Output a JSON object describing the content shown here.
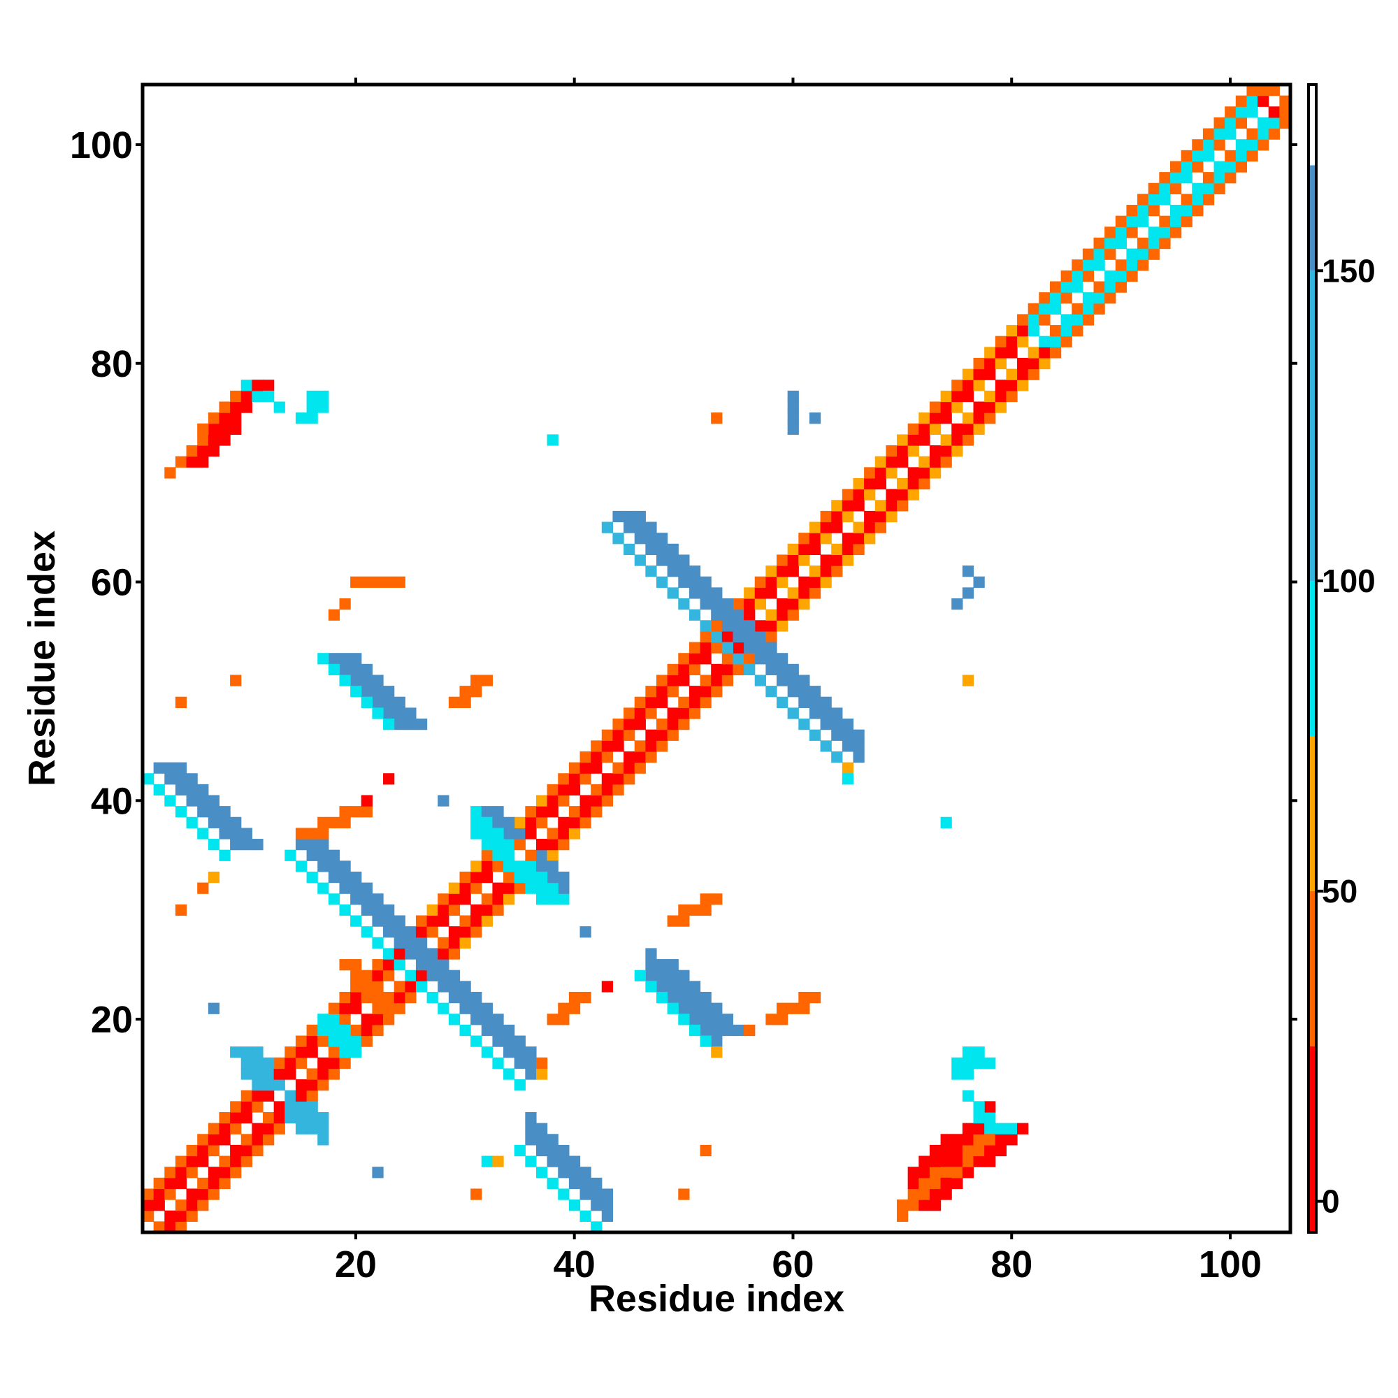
{
  "chart_data": {
    "type": "heatmap",
    "title": "",
    "xlabel": "Residue index",
    "ylabel": "Residue index",
    "xlim": [
      1,
      105
    ],
    "ylim": [
      1,
      105
    ],
    "xticks": [
      20,
      40,
      60,
      80,
      100
    ],
    "yticks": [
      20,
      40,
      60,
      80,
      100
    ],
    "xtick_labels": [
      "20",
      "40",
      "60",
      "80",
      "100"
    ],
    "ytick_labels": [
      "20",
      "40",
      "60",
      "80",
      "100"
    ],
    "grid": false,
    "colorbar": {
      "range": [
        -5,
        180
      ],
      "ticks": [
        0,
        50,
        100,
        150
      ],
      "tick_labels": [
        "0",
        "50",
        "100",
        "150"
      ],
      "bands": [
        {
          "from": -5,
          "to": 25,
          "color": "#ff0000"
        },
        {
          "from": 25,
          "to": 50,
          "color": "#ff6600"
        },
        {
          "from": 50,
          "to": 75,
          "color": "#ffa500"
        },
        {
          "from": 75,
          "to": 100,
          "color": "#00e5ee"
        },
        {
          "from": 100,
          "to": 150,
          "color": "#33b5dd"
        },
        {
          "from": 150,
          "to": 167,
          "color": "#4a8ec6"
        },
        {
          "from": 167,
          "to": 180,
          "color": "#ffffff"
        }
      ]
    },
    "colors": {
      "red": "#ff0000",
      "orange_red": "#ff4500",
      "orange": "#ff6600",
      "amber": "#ffa500",
      "cyan": "#00e5ee",
      "sky": "#33b5dd",
      "steel": "#4a8ec6"
    },
    "diagonal_bands": [
      {
        "from": 1,
        "to": 12,
        "palette": [
          "orange",
          "red",
          "orange"
        ]
      },
      {
        "from": 12,
        "to": 26,
        "palette": [
          "orange",
          "red",
          "orange"
        ]
      },
      {
        "from": 26,
        "to": 38,
        "palette": [
          "orange",
          "red",
          "amber"
        ]
      },
      {
        "from": 38,
        "to": 55,
        "palette": [
          "orange",
          "red",
          "orange"
        ]
      },
      {
        "from": 55,
        "to": 82,
        "palette": [
          "amber",
          "red",
          "orange"
        ]
      },
      {
        "from": 82,
        "to": 103,
        "palette": [
          "orange",
          "cyan",
          "orange"
        ]
      },
      {
        "from": 103,
        "to": 105,
        "palette": [
          "red",
          "orange",
          "red"
        ]
      }
    ],
    "segments": [
      {
        "x1": 4,
        "y1": 71,
        "x2": 10,
        "y2": 78,
        "w": 3,
        "color": "red",
        "sym": true
      },
      {
        "x1": 3,
        "y1": 70,
        "x2": 9,
        "y2": 77,
        "w": 1,
        "color": "orange",
        "sym": true
      },
      {
        "x1": 10,
        "y1": 78,
        "x2": 13,
        "y2": 76,
        "w": 1,
        "color": "cyan",
        "sym": true
      },
      {
        "x1": 15,
        "y1": 75,
        "x2": 16,
        "y2": 77,
        "w": 2,
        "color": "cyan",
        "sym": true
      },
      {
        "x1": 44,
        "y1": 66,
        "x2": 55,
        "y2": 55,
        "w": 3,
        "color": "steel",
        "sym": true
      },
      {
        "x1": 43,
        "y1": 65,
        "x2": 54,
        "y2": 54,
        "w": 1,
        "color": "sky",
        "sym": true
      },
      {
        "x1": 18,
        "y1": 53,
        "x2": 24,
        "y2": 47,
        "w": 3,
        "color": "steel",
        "sym": true
      },
      {
        "x1": 17,
        "y1": 53,
        "x2": 23,
        "y2": 47,
        "w": 1,
        "color": "cyan",
        "sym": true
      },
      {
        "x1": 2,
        "y1": 43,
        "x2": 9,
        "y2": 36,
        "w": 3,
        "color": "steel",
        "sym": true
      },
      {
        "x1": 1,
        "y1": 42,
        "x2": 8,
        "y2": 35,
        "w": 1,
        "color": "cyan",
        "sym": true
      },
      {
        "x1": 15,
        "y1": 36,
        "x2": 25,
        "y2": 26,
        "w": 3,
        "color": "steel",
        "sym": true
      },
      {
        "x1": 14,
        "y1": 35,
        "x2": 24,
        "y2": 25,
        "w": 1,
        "color": "cyan",
        "sym": true
      },
      {
        "x1": 31,
        "y1": 39,
        "x2": 33,
        "y2": 37,
        "w": 3,
        "color": "steel",
        "sym": true
      },
      {
        "x1": 34,
        "y1": 34,
        "x2": 37,
        "y2": 31,
        "w": 3,
        "color": "cyan",
        "sym": true
      },
      {
        "x1": 9,
        "y1": 17,
        "x2": 11,
        "y2": 14,
        "w": 3,
        "color": "sky",
        "sym": true
      },
      {
        "x1": 17,
        "y1": 20,
        "x2": 19,
        "y2": 17,
        "w": 2,
        "color": "cyan",
        "sym": true
      },
      {
        "x1": 47,
        "y1": 25,
        "x2": 53,
        "y2": 19,
        "w": 3,
        "color": "steel",
        "sym": false
      },
      {
        "x1": 46,
        "y1": 24,
        "x2": 52,
        "y2": 18,
        "w": 1,
        "color": "cyan",
        "sym": false
      },
      {
        "x1": 19,
        "y1": 25,
        "x2": 23,
        "y2": 21,
        "w": 2,
        "color": "orange",
        "sym": false
      },
      {
        "x1": 38,
        "y1": 20,
        "x2": 40,
        "y2": 22,
        "w": 2,
        "color": "orange",
        "sym": false
      },
      {
        "x1": 20,
        "y1": 60,
        "x2": 24,
        "y2": 60,
        "w": 1,
        "color": "orange",
        "sym": false
      },
      {
        "x1": 18,
        "y1": 57,
        "x2": 19,
        "y2": 58,
        "w": 1,
        "color": "orange",
        "sym": false
      },
      {
        "x1": 29,
        "y1": 49,
        "x2": 31,
        "y2": 51,
        "w": 2,
        "color": "orange",
        "sym": false
      },
      {
        "x1": 15,
        "y1": 37,
        "x2": 20,
        "y2": 39,
        "w": 2,
        "color": "orange",
        "sym": false
      },
      {
        "x1": 49,
        "y1": 29,
        "x2": 52,
        "y2": 31,
        "w": 2,
        "color": "orange",
        "sym": false
      },
      {
        "x1": 58,
        "y1": 20,
        "x2": 61,
        "y2": 22,
        "w": 2,
        "color": "orange",
        "sym": false
      },
      {
        "x1": 71,
        "y1": 3,
        "x2": 79,
        "y2": 10,
        "w": 3,
        "color": "red",
        "sym": false
      },
      {
        "x1": 70,
        "y1": 2,
        "x2": 78,
        "y2": 9,
        "w": 1,
        "color": "orange",
        "sym": false
      },
      {
        "x1": 77,
        "y1": 11,
        "x2": 80,
        "y2": 10,
        "w": 1,
        "color": "cyan",
        "sym": false
      },
      {
        "x1": 75,
        "y1": 15,
        "x2": 77,
        "y2": 16,
        "w": 2,
        "color": "cyan",
        "sym": false
      },
      {
        "x1": 75,
        "y1": 58,
        "x2": 77,
        "y2": 60,
        "w": 1,
        "color": "steel",
        "sym": false
      },
      {
        "x1": 60,
        "y1": 74,
        "x2": 60,
        "y2": 77,
        "w": 1,
        "color": "steel",
        "sym": false
      }
    ],
    "points": [
      {
        "x": 38,
        "y": 73,
        "color": "cyan"
      },
      {
        "x": 53,
        "y": 75,
        "color": "orange"
      },
      {
        "x": 62,
        "y": 75,
        "color": "steel"
      },
      {
        "x": 9,
        "y": 51,
        "color": "orange"
      },
      {
        "x": 4,
        "y": 49,
        "color": "orange"
      },
      {
        "x": 23,
        "y": 42,
        "color": "red"
      },
      {
        "x": 21,
        "y": 40,
        "color": "red"
      },
      {
        "x": 28,
        "y": 40,
        "color": "steel"
      },
      {
        "x": 4,
        "y": 30,
        "color": "orange"
      },
      {
        "x": 7,
        "y": 33,
        "color": "amber"
      },
      {
        "x": 6,
        "y": 32,
        "color": "orange"
      },
      {
        "x": 41,
        "y": 28,
        "color": "steel"
      },
      {
        "x": 43,
        "y": 23,
        "color": "red"
      },
      {
        "x": 7,
        "y": 21,
        "color": "steel"
      },
      {
        "x": 56,
        "y": 19,
        "color": "orange"
      },
      {
        "x": 53,
        "y": 17,
        "color": "amber"
      },
      {
        "x": 37,
        "y": 15,
        "color": "amber"
      },
      {
        "x": 37,
        "y": 16,
        "color": "orange"
      },
      {
        "x": 52,
        "y": 8,
        "color": "orange"
      },
      {
        "x": 50,
        "y": 4,
        "color": "orange"
      },
      {
        "x": 31,
        "y": 4,
        "color": "orange"
      },
      {
        "x": 32,
        "y": 7,
        "color": "cyan"
      },
      {
        "x": 33,
        "y": 7,
        "color": "amber"
      },
      {
        "x": 22,
        "y": 6,
        "color": "steel"
      },
      {
        "x": 65,
        "y": 43,
        "color": "amber"
      },
      {
        "x": 65,
        "y": 42,
        "color": "cyan"
      },
      {
        "x": 74,
        "y": 38,
        "color": "cyan"
      },
      {
        "x": 76,
        "y": 51,
        "color": "amber"
      },
      {
        "x": 76,
        "y": 61,
        "color": "steel"
      }
    ]
  }
}
